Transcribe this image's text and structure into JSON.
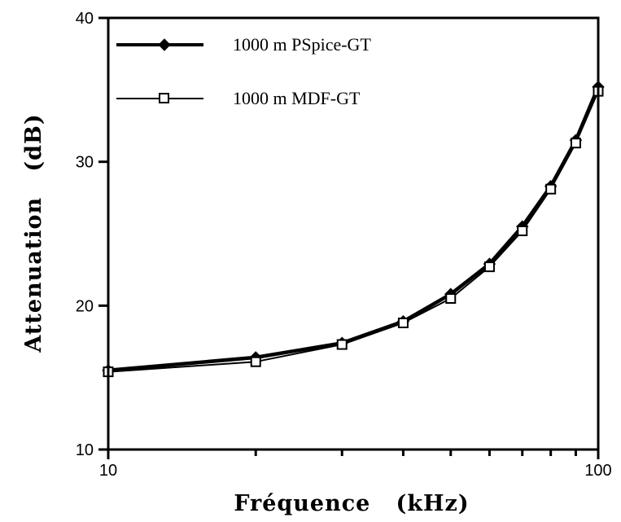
{
  "chart_data": {
    "type": "line",
    "xscale": "log",
    "xlim": [
      10,
      100
    ],
    "ylim": [
      10,
      40
    ],
    "xticks": [
      "10",
      "100"
    ],
    "yticks": [
      "10",
      "20",
      "30",
      "40"
    ],
    "xlabel": "Fréquence   (kHz)",
    "ylabel": "Attenuation   (dB)",
    "grid": false,
    "legend": "top-left",
    "x": [
      10,
      20,
      30,
      40,
      50,
      60,
      70,
      80,
      90,
      100
    ],
    "series": [
      {
        "name": "1000 m PSpice-GT",
        "marker": "filled-diamond",
        "values": [
          15.5,
          16.4,
          17.4,
          18.9,
          20.8,
          22.9,
          25.5,
          28.3,
          31.5,
          35.2
        ]
      },
      {
        "name": "1000 m MDF-GT",
        "marker": "open-square",
        "values": [
          15.4,
          16.1,
          17.3,
          18.8,
          20.5,
          22.7,
          25.2,
          28.1,
          31.3,
          34.9
        ]
      }
    ],
    "colors": {
      "line": "#000000",
      "background": "#ffffff"
    }
  }
}
